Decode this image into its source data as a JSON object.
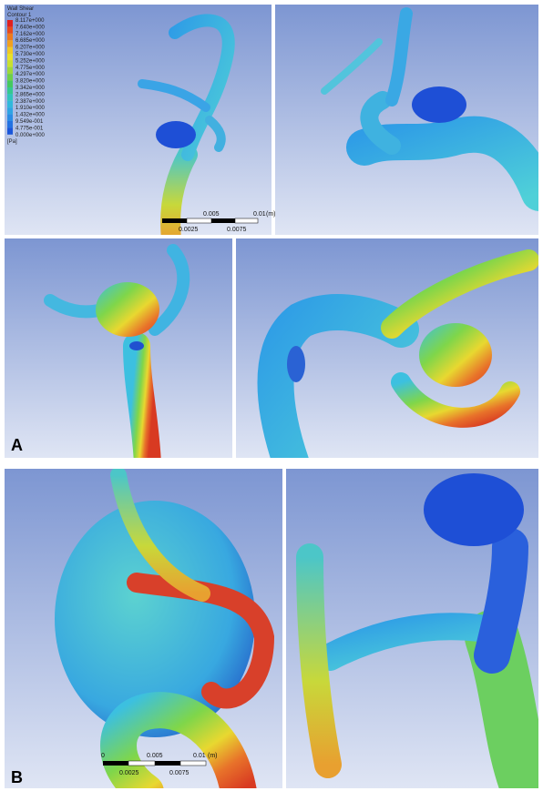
{
  "legend": {
    "title": "Wall Shear",
    "subtitle": "Contour 1",
    "values": [
      "8.117e+000",
      "7.640e+000",
      "7.162e+000",
      "6.685e+000",
      "6.207e+000",
      "5.730e+000",
      "5.252e+000",
      "4.775e+000",
      "4.297e+000",
      "3.820e+000",
      "3.342e+000",
      "2.865e+000",
      "2.387e+000",
      "1.910e+000",
      "1.432e+000",
      "9.549e-001",
      "4.775e-001",
      "0.000e+000"
    ],
    "unit": "[Pa]"
  },
  "scale_bars": [
    {
      "top": [
        "0.005",
        "0.01",
        "(m)"
      ],
      "bottom": [
        "0.0025",
        "0.0075"
      ]
    },
    {
      "top": [
        "0",
        "0.005",
        "0.01",
        "(m)"
      ],
      "bottom": [
        "0.0025",
        "0.0075"
      ]
    }
  ],
  "panel_labels": [
    "A",
    "B"
  ]
}
